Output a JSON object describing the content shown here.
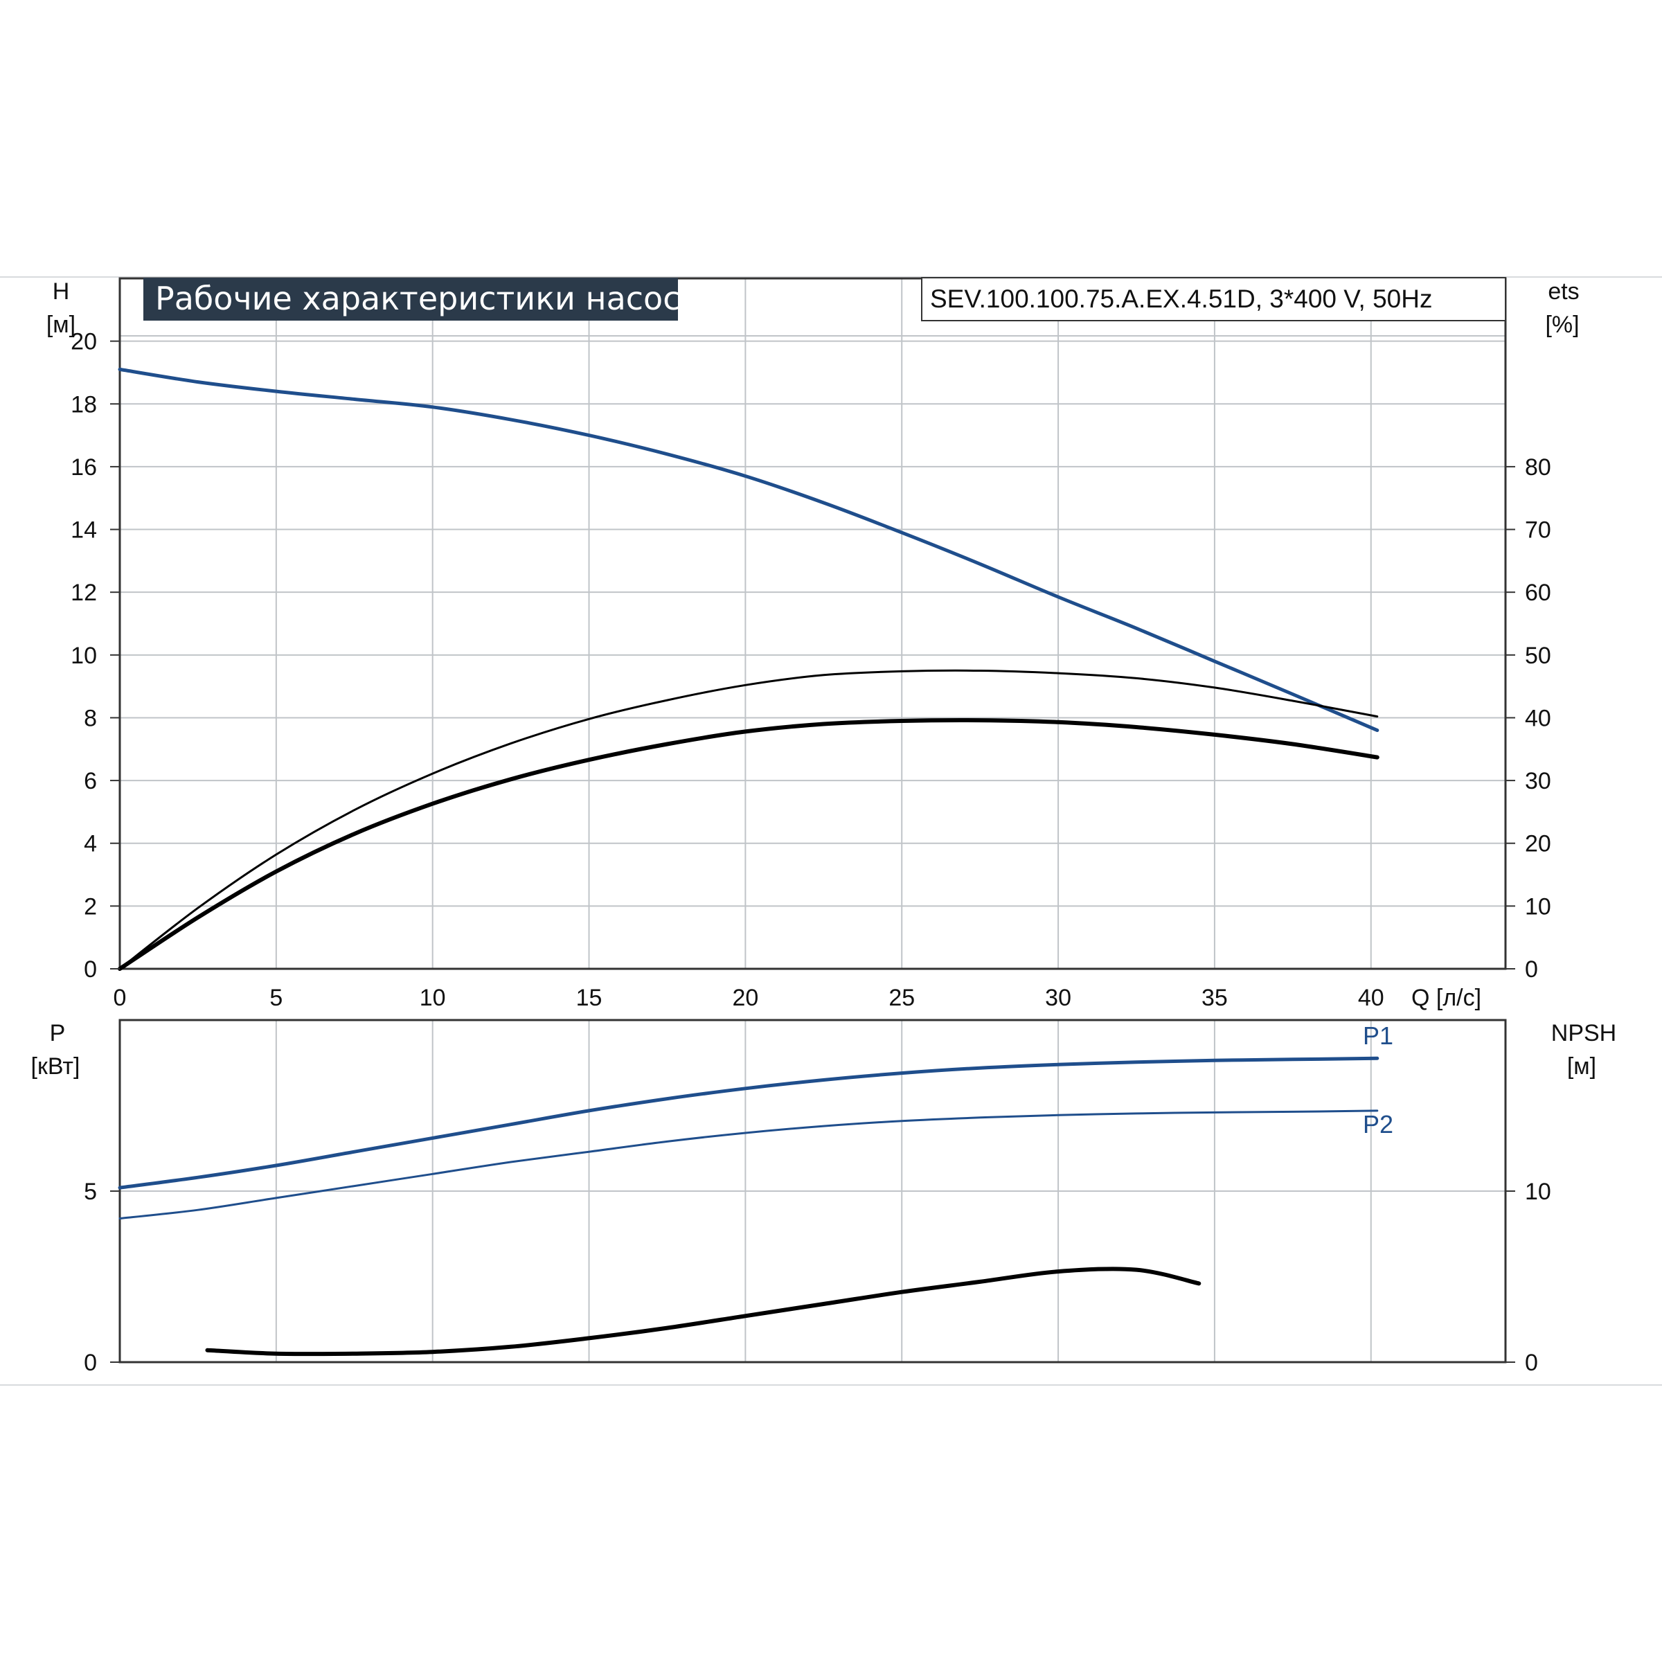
{
  "title": "Рабочие характеристики насоса",
  "model": "SEV.100.100.75.A.EX.4.51D, 3*400 V, 50Hz",
  "colors": {
    "blue": "#1f4e8c",
    "black": "#000000",
    "grid": "#c0c4c8",
    "title_bg": "#2b3a4a"
  },
  "chart_data": [
    {
      "type": "line",
      "name": "top",
      "ylabel_left": [
        "H",
        "[м]"
      ],
      "ylabel_right": [
        "ets",
        "[%]"
      ],
      "xlabel": "Q [л/с]",
      "xlim": [
        0,
        44.3
      ],
      "ylim": [
        0,
        22
      ],
      "ylim_right": [
        0,
        110
      ],
      "x_ticks": [
        0,
        5,
        10,
        15,
        20,
        25,
        30,
        35,
        40
      ],
      "y_ticks": [
        0,
        2,
        4,
        6,
        8,
        10,
        12,
        14,
        16,
        18,
        20
      ],
      "y_ticks_right": [
        0,
        10,
        20,
        30,
        40,
        50,
        60,
        70,
        80
      ],
      "grid": true,
      "series": [
        {
          "key": "H",
          "axis": "left",
          "color": "#1f4e8c",
          "width": 5,
          "x": [
            0,
            2.5,
            5,
            7.5,
            10,
            12.5,
            15,
            17.5,
            20,
            22.5,
            25,
            27.5,
            30,
            32.5,
            35,
            37.5,
            40.2
          ],
          "y": [
            19.1,
            18.7,
            18.4,
            18.15,
            17.9,
            17.5,
            17.0,
            16.4,
            15.7,
            14.85,
            13.9,
            12.9,
            11.85,
            10.85,
            9.8,
            8.75,
            7.6
          ]
        },
        {
          "key": "eta_thin",
          "axis": "right",
          "color": "#000000",
          "width": 3,
          "x": [
            0,
            2.5,
            5,
            7.5,
            10,
            12.5,
            15,
            17.5,
            20,
            22.5,
            25,
            27.5,
            30,
            32.5,
            35,
            37.5,
            40.2
          ],
          "y": [
            0,
            9.7,
            18.2,
            25.3,
            31.1,
            35.9,
            39.8,
            42.8,
            45.2,
            46.8,
            47.4,
            47.5,
            47.1,
            46.3,
            44.8,
            42.7,
            40.2
          ]
        },
        {
          "key": "eta_thick",
          "axis": "right",
          "color": "#000000",
          "width": 6,
          "x": [
            0,
            2.5,
            5,
            7.5,
            10,
            12.5,
            15,
            17.5,
            20,
            22.5,
            25,
            27.5,
            30,
            32.5,
            35,
            37.5,
            40.2
          ],
          "y": [
            0,
            8.2,
            15.5,
            21.5,
            26.3,
            30.2,
            33.3,
            35.8,
            37.8,
            39.0,
            39.5,
            39.6,
            39.3,
            38.5,
            37.3,
            35.8,
            33.7
          ]
        }
      ]
    },
    {
      "type": "line",
      "name": "bottom",
      "ylabel_left": [
        "P",
        "[кВт]"
      ],
      "ylabel_right": [
        "NPSH",
        "[м]"
      ],
      "xlim": [
        0,
        44.3
      ],
      "ylim": [
        0,
        10
      ],
      "ylim_right": [
        0,
        20
      ],
      "y_ticks": [
        0,
        5
      ],
      "y_ticks_right": [
        0,
        10
      ],
      "grid": true,
      "series": [
        {
          "key": "P1",
          "name": "P1",
          "axis": "left",
          "color": "#1f4e8c",
          "width": 5,
          "x": [
            0,
            2.5,
            5,
            7.5,
            10,
            12.5,
            15,
            17.5,
            20,
            22.5,
            25,
            27.5,
            30,
            32.5,
            35,
            37.5,
            40.2
          ],
          "y": [
            5.1,
            5.4,
            5.75,
            6.15,
            6.55,
            6.95,
            7.35,
            7.7,
            8.0,
            8.25,
            8.45,
            8.6,
            8.7,
            8.77,
            8.82,
            8.85,
            8.88
          ]
        },
        {
          "key": "P2",
          "name": "P2",
          "axis": "left",
          "color": "#1f4e8c",
          "width": 3,
          "x": [
            0,
            2.5,
            5,
            7.5,
            10,
            12.5,
            15,
            17.5,
            20,
            22.5,
            25,
            27.5,
            30,
            32.5,
            35,
            37.5,
            40.2
          ],
          "y": [
            4.2,
            4.45,
            4.8,
            5.15,
            5.5,
            5.85,
            6.15,
            6.45,
            6.7,
            6.9,
            7.05,
            7.15,
            7.22,
            7.27,
            7.3,
            7.32,
            7.35
          ]
        },
        {
          "key": "NPSH",
          "axis": "right",
          "color": "#000000",
          "width": 6,
          "x": [
            2.8,
            5,
            7.5,
            10,
            12.5,
            15,
            17.5,
            20,
            22.5,
            25,
            27.5,
            30,
            32.5,
            34.5
          ],
          "y": [
            0.7,
            0.5,
            0.5,
            0.6,
            0.9,
            1.4,
            2.0,
            2.7,
            3.4,
            4.1,
            4.7,
            5.3,
            5.4,
            4.6
          ]
        }
      ]
    }
  ]
}
